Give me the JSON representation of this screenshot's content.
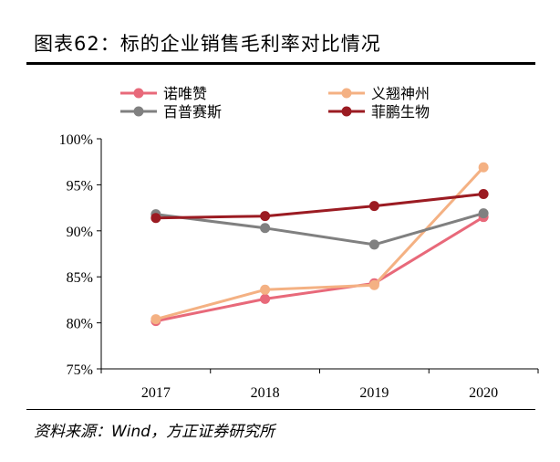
{
  "title": "图表62：标的企业销售毛利率对比情况",
  "source": "资料来源：Wind，方正证券研究所",
  "chart_data": {
    "type": "line",
    "categories": [
      "2017",
      "2018",
      "2019",
      "2020"
    ],
    "ylim": [
      75,
      100
    ],
    "yticks": [
      75,
      80,
      85,
      90,
      95,
      100
    ],
    "ytick_labels": [
      "75%",
      "80%",
      "85%",
      "90%",
      "95%",
      "100%"
    ],
    "grid": false,
    "legend_position": "top",
    "series": [
      {
        "name": "诺唯赞",
        "color": "#e8697a",
        "values": [
          80.2,
          82.6,
          84.3,
          91.5
        ]
      },
      {
        "name": "义翘神州",
        "color": "#f4b183",
        "values": [
          80.4,
          83.6,
          84.1,
          96.9
        ]
      },
      {
        "name": "百普赛斯",
        "color": "#808080",
        "values": [
          91.8,
          90.3,
          88.5,
          91.9
        ]
      },
      {
        "name": "菲鹏生物",
        "color": "#9b1b22",
        "values": [
          91.4,
          91.6,
          92.7,
          94.0
        ]
      }
    ]
  }
}
